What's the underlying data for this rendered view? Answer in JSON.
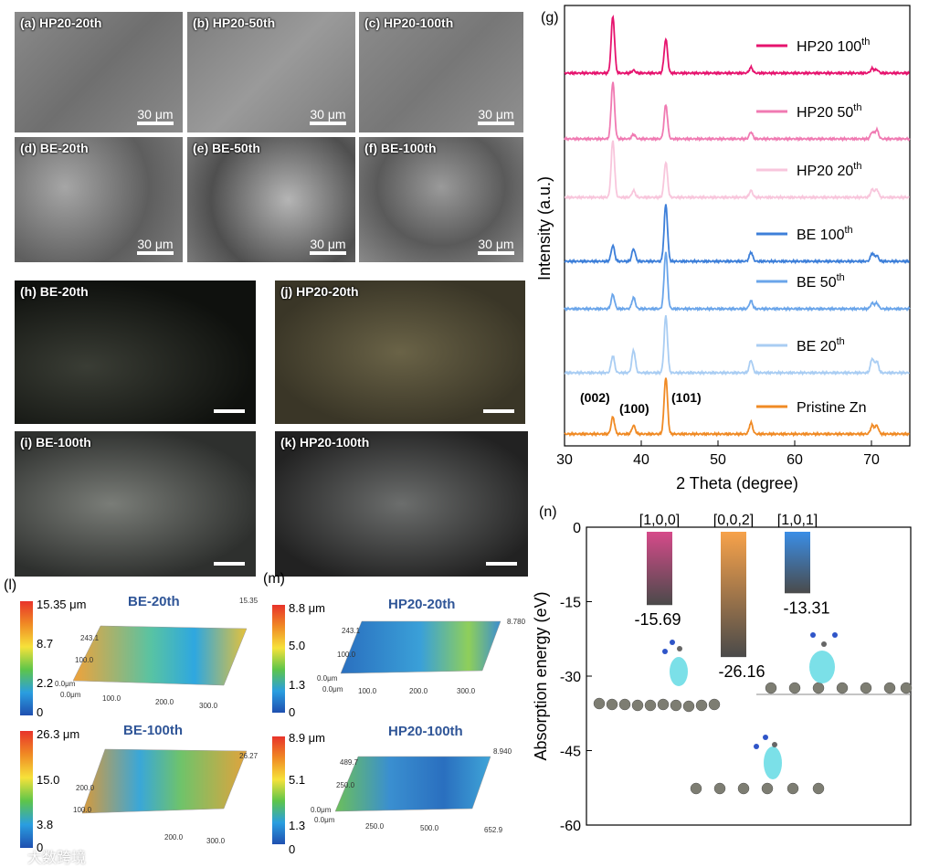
{
  "sem": [
    {
      "label": "(a) HP20-20th",
      "scale": "30 μm"
    },
    {
      "label": "(b) HP20-50th",
      "scale": "30 μm"
    },
    {
      "label": "(c) HP20-100th",
      "scale": "30 μm"
    },
    {
      "label": "(d) BE-20th",
      "scale": "30 μm"
    },
    {
      "label": "(e) BE-50th",
      "scale": "30 μm"
    },
    {
      "label": "(f) BE-100th",
      "scale": "30 μm"
    }
  ],
  "optical": [
    {
      "label": "(h) BE-20th"
    },
    {
      "label": "(j) HP20-20th"
    },
    {
      "label": "(i) BE-100th"
    },
    {
      "label": "(k) HP20-100th"
    }
  ],
  "profilometry": {
    "l_label": "(l)",
    "m_label": "(m)",
    "be20": {
      "title": "BE-20th",
      "cb": [
        "15.35 μm",
        "8.7",
        "2.2",
        "0"
      ],
      "ticks": [
        "15.35",
        "243.1",
        "100.0",
        "0.0μm",
        "0.0μm",
        "100.0",
        "200.0",
        "300.0"
      ]
    },
    "be100": {
      "title": "BE-100th",
      "cb": [
        "26.3 μm",
        "15.0",
        "3.8",
        "0"
      ],
      "ticks": [
        "26.27",
        "200.0",
        "100.0",
        "200.0",
        "300.0"
      ]
    },
    "hp20_20": {
      "title": "HP20-20th",
      "cb": [
        "8.8 μm",
        "5.0",
        "1.3",
        "0"
      ],
      "ticks": [
        "8.780",
        "243.1",
        "100.0",
        "0.0μm",
        "0.0μm",
        "100.0",
        "200.0",
        "300.0"
      ]
    },
    "hp20_100": {
      "title": "HP20-100th",
      "cb": [
        "8.9 μm",
        "5.1",
        "1.3",
        "0"
      ],
      "ticks": [
        "8.940",
        "489.7",
        "250.0",
        "0.0μm",
        "0.0μm",
        "250.0",
        "500.0",
        "652.9"
      ]
    }
  },
  "watermark": "大数跨境",
  "chart_data": [
    {
      "panel": "(g)",
      "type": "line",
      "xlabel": "2 Theta (degree)",
      "ylabel": "Intensity (a.u.)",
      "xlim": [
        30,
        75
      ],
      "xticks": [
        "30",
        "40",
        "50",
        "60",
        "70"
      ],
      "peak_labels": [
        "(002)",
        "(100)",
        "(101)"
      ],
      "peaks_2theta": [
        36.3,
        39.0,
        43.2,
        54.3,
        70.1,
        70.7
      ],
      "series": [
        {
          "name": "HP20 100",
          "sup": "th",
          "color": "#e6136e",
          "peaks": [
            1.0,
            0.05,
            0.6,
            0.1,
            0.08,
            0.06
          ]
        },
        {
          "name": "HP20 50",
          "sup": "th",
          "color": "#f07ab2",
          "peaks": [
            1.0,
            0.08,
            0.6,
            0.12,
            0.12,
            0.16
          ]
        },
        {
          "name": "HP20 20",
          "sup": "th",
          "color": "#f8c6dc",
          "peaks": [
            1.0,
            0.12,
            0.62,
            0.12,
            0.14,
            0.14
          ]
        },
        {
          "name": "BE 100",
          "sup": "th",
          "color": "#3d7fd9",
          "peaks": [
            0.28,
            0.22,
            1.0,
            0.16,
            0.14,
            0.1
          ]
        },
        {
          "name": "BE 50",
          "sup": "th",
          "color": "#6aa5ea",
          "peaks": [
            0.25,
            0.2,
            1.0,
            0.14,
            0.1,
            0.1
          ]
        },
        {
          "name": "BE 20",
          "sup": "th",
          "color": "#a9cdf3",
          "peaks": [
            0.3,
            0.4,
            1.0,
            0.22,
            0.25,
            0.2
          ]
        },
        {
          "name": "Pristine Zn",
          "sup": "",
          "color": "#f08a24",
          "peaks": [
            0.3,
            0.15,
            1.0,
            0.2,
            0.15,
            0.15
          ]
        }
      ]
    },
    {
      "panel": "(n)",
      "type": "bar",
      "ylabel": "Absorption energy (eV)",
      "ylim": [
        -60,
        0
      ],
      "yticks": [
        "0",
        "-15",
        "-30",
        "-45",
        "-60"
      ],
      "categories": [
        "[1,0,0]",
        "[0,0,2]",
        "[1,0,1]"
      ],
      "values": [
        -15.69,
        -26.16,
        -13.31
      ],
      "value_labels": [
        "-15.69",
        "-26.16",
        "-13.31"
      ],
      "colors": [
        "#d64a8a",
        "#f7a24a",
        "#3a8ee6"
      ]
    }
  ]
}
